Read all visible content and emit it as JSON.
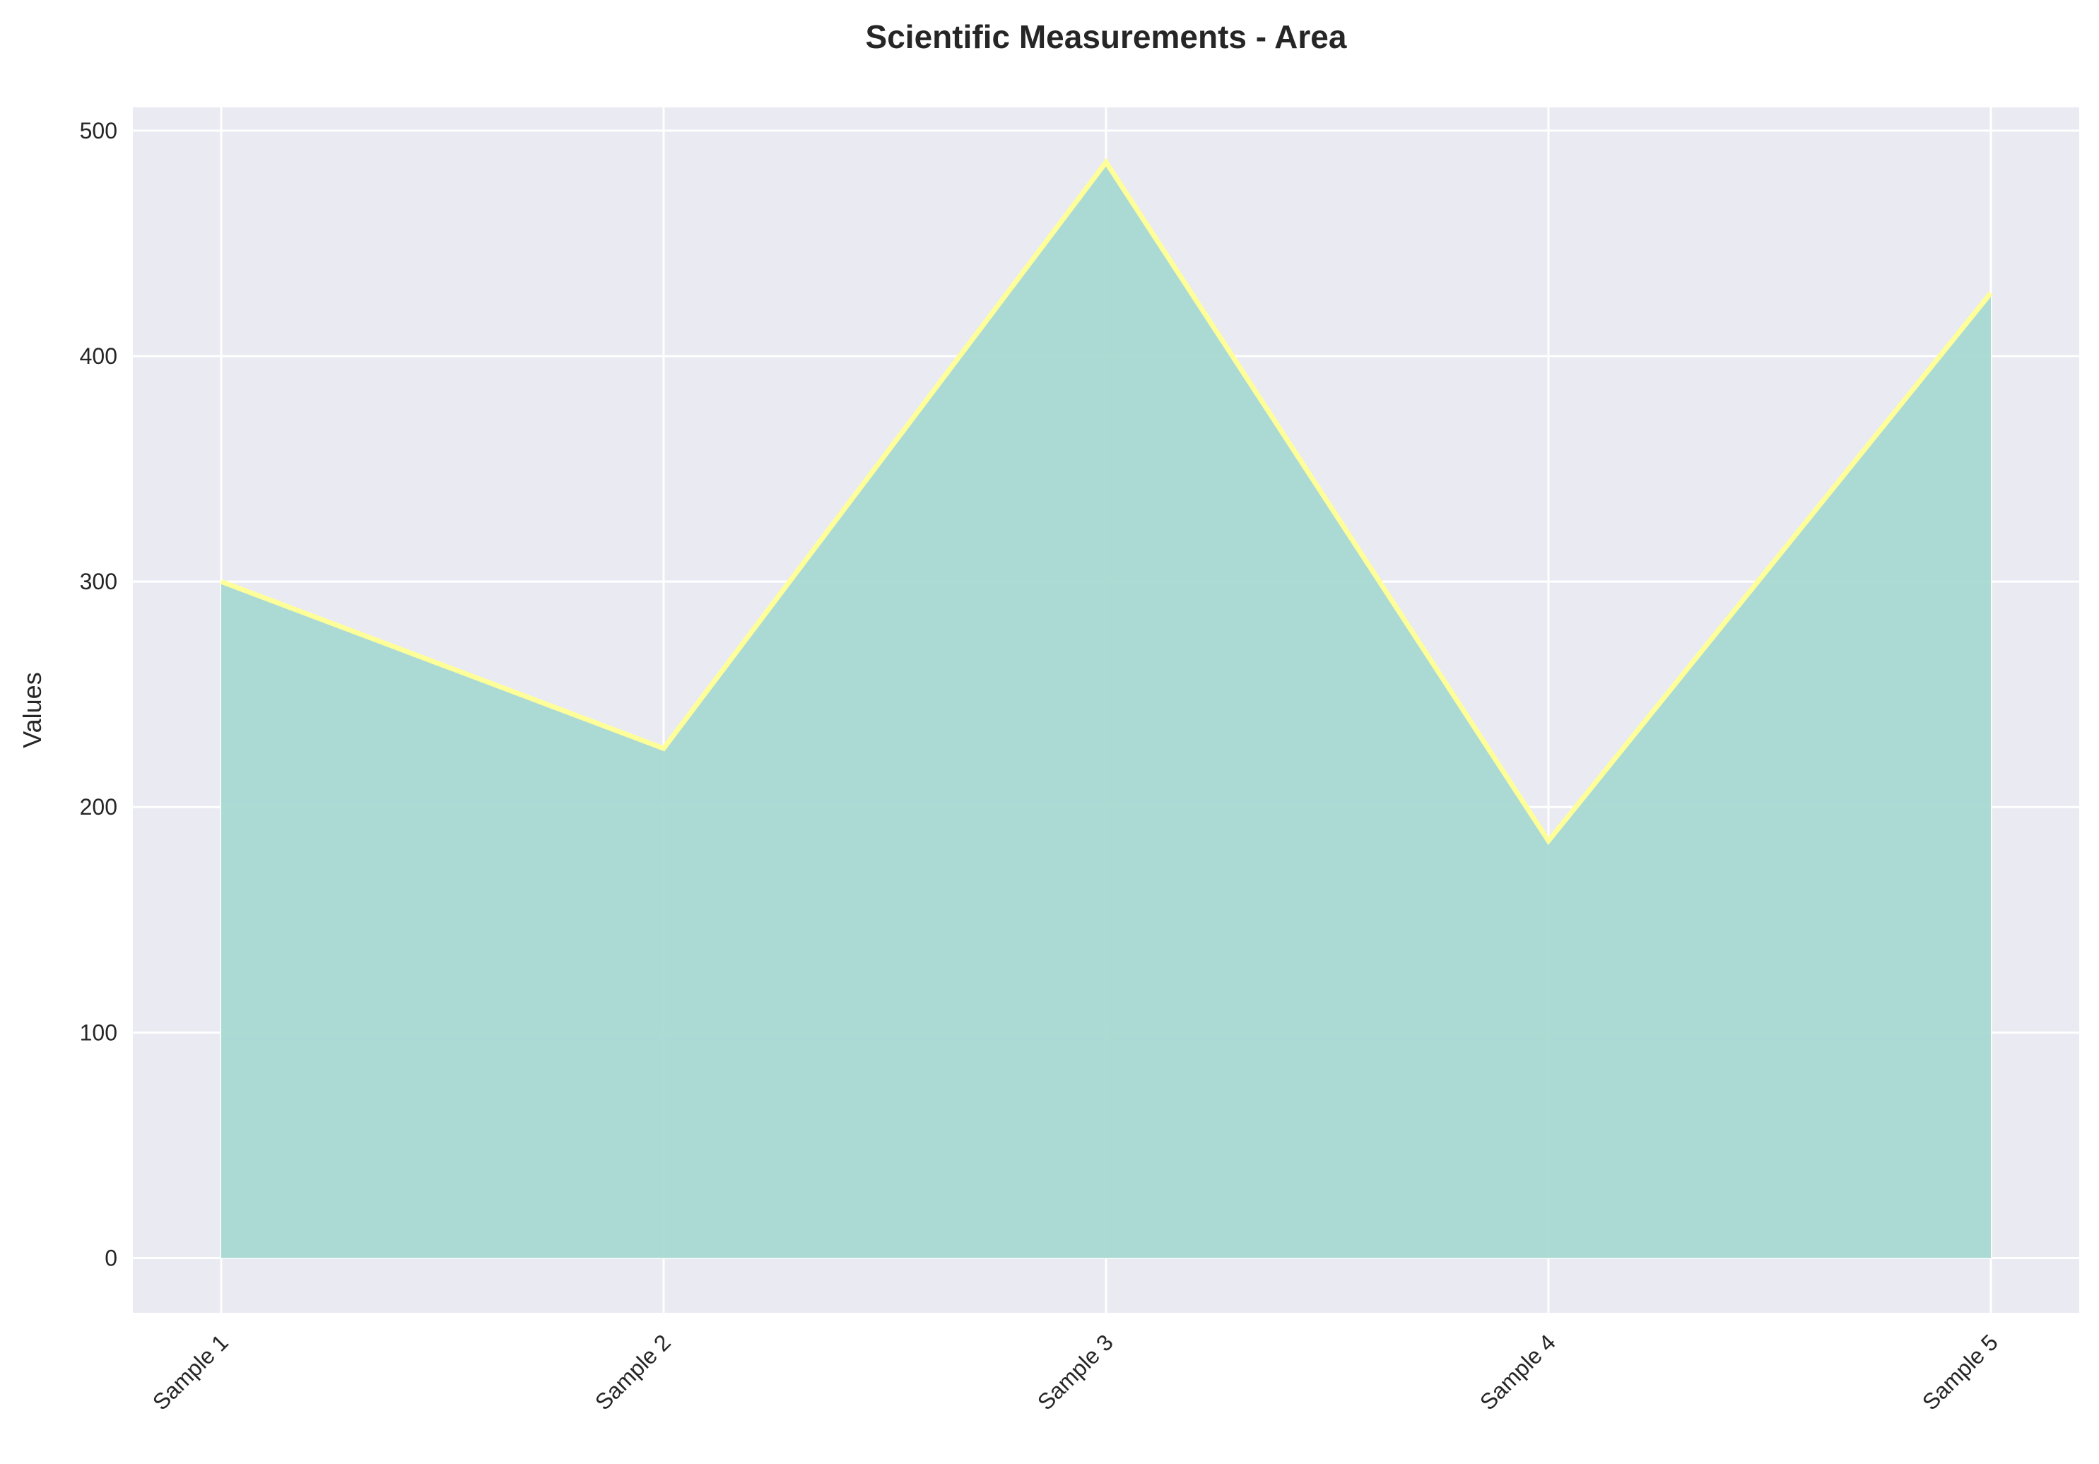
{
  "chart_data": {
    "type": "area",
    "title": "Scientific Measurements - Area",
    "xlabel": "",
    "ylabel": "Values",
    "categories": [
      "Sample 1",
      "Sample 2",
      "Sample 3",
      "Sample 4",
      "Sample 5"
    ],
    "series": [
      {
        "values": [
          300,
          226,
          486,
          185,
          428
        ]
      }
    ],
    "yticks": [
      0,
      100,
      200,
      300,
      400,
      500
    ],
    "ylim": [
      -24.3,
      510.3
    ],
    "grid": true,
    "legend": "none",
    "colors": {
      "background": "#eaeaf2",
      "grid": "#ffffff",
      "fill": "#a8d9d2",
      "line": "#ffff99"
    }
  }
}
